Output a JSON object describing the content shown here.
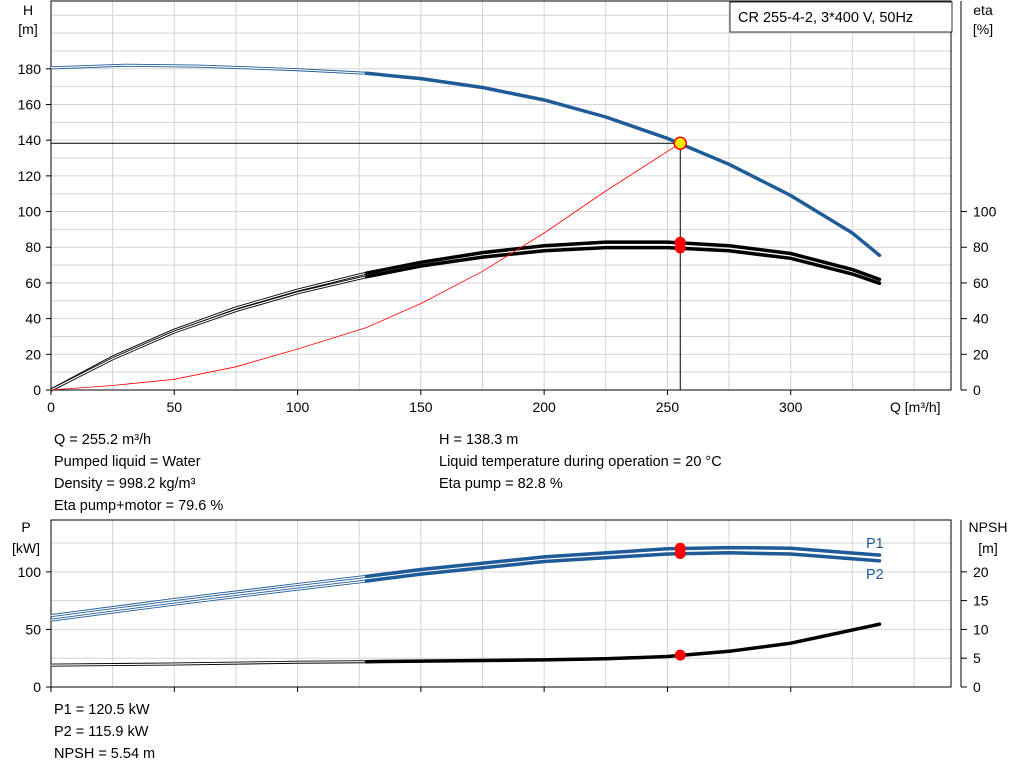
{
  "title": "CR 255-4-2, 3*400 V, 50Hz",
  "colors": {
    "blue": "#1f5b99",
    "black": "#000000",
    "red_point": "#ff0000",
    "op_point_fill": "#ffee00",
    "grid": "#d4d4d4",
    "system": "#ff0000"
  },
  "top_info": {
    "left": [
      "Q = 255.2 m³/h",
      "Pumped liquid = Water",
      "Density = 998.2 kg/m³",
      "Eta pump+motor = 79.6 %"
    ],
    "right": [
      "H = 138.3 m",
      "Liquid temperature during operation = 20 °C",
      "Eta pump = 82.8 %"
    ]
  },
  "bottom_info": [
    "P1 = 120.5 kW",
    "P2 = 115.9 kW",
    "NPSH = 5.54 m"
  ],
  "chart_data": [
    {
      "type": "line",
      "axes": {
        "x": {
          "label": "Q [m³/h]",
          "range": [
            0,
            365
          ],
          "ticks": [
            0,
            50,
            100,
            150,
            200,
            250,
            300
          ]
        },
        "y_left": {
          "label_top": "H",
          "label_unit": "[m]",
          "range": [
            0,
            218
          ],
          "ticks": [
            0,
            20,
            40,
            60,
            80,
            100,
            120,
            140,
            160,
            180
          ]
        },
        "y_right": {
          "label_top": "eta",
          "label_unit": "[%]",
          "range": [
            0,
            218
          ],
          "ticks": [
            0,
            20,
            40,
            60,
            80,
            100
          ]
        }
      },
      "grid": true,
      "operating_point": {
        "q": 255.2,
        "h": 138.3
      },
      "series": [
        {
          "key": "H",
          "style": "blue",
          "axis": "left",
          "x": [
            0,
            30,
            60,
            100,
            128,
            150,
            175,
            200,
            225,
            250,
            275,
            300,
            325,
            336
          ],
          "y": [
            180.5,
            182,
            181.5,
            179.5,
            177.5,
            174.5,
            169.5,
            162.5,
            153,
            141,
            126.5,
            109,
            88,
            75.5
          ],
          "thin_until": 128
        },
        {
          "key": "eta_pump",
          "style": "black",
          "axis": "right",
          "x": [
            0,
            25,
            50,
            75,
            100,
            128,
            150,
            175,
            200,
            225,
            250,
            275,
            300,
            325,
            336
          ],
          "y": [
            0,
            18.5,
            33.5,
            46,
            56,
            65.5,
            71.5,
            77,
            80.8,
            82.9,
            82.9,
            80.8,
            76.5,
            67.5,
            62
          ],
          "thin_until": 128
        },
        {
          "key": "eta_pump_motor",
          "style": "black",
          "axis": "right",
          "x": [
            0,
            25,
            50,
            75,
            100,
            128,
            150,
            175,
            200,
            225,
            250,
            275,
            300,
            325,
            336
          ],
          "y": [
            0,
            17.5,
            32.5,
            44.5,
            54.5,
            63.5,
            69.5,
            74.5,
            78,
            79.8,
            79.8,
            78,
            73.8,
            65,
            59.8
          ],
          "thin_until": 128
        },
        {
          "key": "system_curve",
          "style": "system",
          "axis": "left",
          "x": [
            0,
            25,
            50,
            75,
            100,
            128,
            150,
            175,
            200,
            225,
            255.2
          ],
          "y": [
            0,
            2.5,
            6,
            13,
            23,
            35,
            48.5,
            66.5,
            88,
            111.5,
            138.3
          ]
        }
      ],
      "markers": [
        {
          "axis": "left",
          "x": 255.2,
          "y": 138.3,
          "style": "op"
        },
        {
          "axis": "right",
          "x": 255.2,
          "y": 82.8,
          "style": "red"
        },
        {
          "axis": "right",
          "x": 255.2,
          "y": 79.6,
          "style": "red"
        }
      ]
    },
    {
      "type": "line",
      "axes": {
        "x": {
          "range": [
            0,
            365
          ],
          "ticks": [
            0,
            50,
            100,
            150,
            200,
            250,
            300
          ]
        },
        "y_left": {
          "label_top": "P",
          "label_unit": "[kW]",
          "range": [
            0,
            145
          ],
          "ticks": [
            0,
            50,
            100
          ]
        },
        "y_right": {
          "label_top": "NPSH",
          "label_unit": "[m]",
          "range": [
            0,
            29
          ],
          "ticks": [
            0,
            5,
            10,
            15,
            20
          ]
        }
      },
      "grid": true,
      "series": [
        {
          "key": "P1",
          "name": "P1",
          "style": "blue",
          "axis": "left",
          "x": [
            0,
            50,
            100,
            128,
            150,
            200,
            250,
            275,
            300,
            336
          ],
          "y": [
            62,
            76,
            89,
            96,
            102,
            113,
            120,
            121,
            120.5,
            114.5
          ],
          "thin_until": 128
        },
        {
          "key": "P2",
          "name": "P2",
          "style": "blue",
          "axis": "left",
          "x": [
            0,
            50,
            100,
            128,
            150,
            200,
            250,
            275,
            300,
            336
          ],
          "y": [
            58,
            72,
            85,
            92,
            98,
            109,
            115.5,
            116.5,
            115.5,
            109.5
          ],
          "thin_until": 128
        },
        {
          "key": "NPSH",
          "style": "black",
          "axis": "right",
          "x": [
            0,
            50,
            100,
            128,
            150,
            200,
            225,
            250,
            275,
            300,
            336
          ],
          "y": [
            3.8,
            4.0,
            4.3,
            4.4,
            4.5,
            4.7,
            4.9,
            5.3,
            6.2,
            7.6,
            10.9
          ],
          "thin_until": 128
        }
      ],
      "markers": [
        {
          "axis": "left",
          "x": 255.2,
          "y": 120.5,
          "style": "red"
        },
        {
          "axis": "left",
          "x": 255.2,
          "y": 115.9,
          "style": "red"
        },
        {
          "axis": "right",
          "x": 255.2,
          "y": 5.54,
          "style": "red"
        }
      ]
    }
  ]
}
